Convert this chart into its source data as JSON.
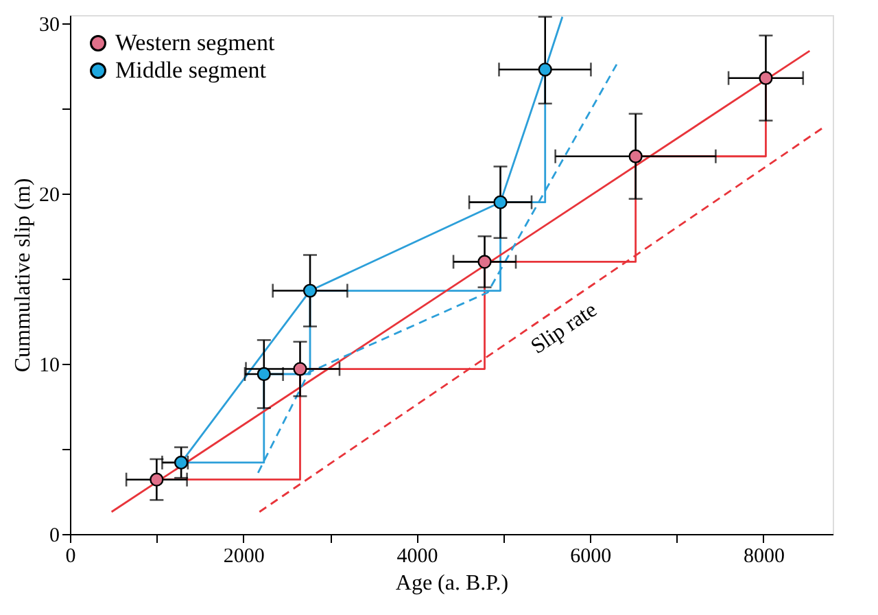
{
  "chart_data": {
    "type": "scatter",
    "xlabel": "Age (a. B.P.)",
    "ylabel": "Cummulative slip (m)",
    "xlim": [
      0,
      8800
    ],
    "ylim": [
      0,
      30.5
    ],
    "xticks": [
      0,
      {
        "value": 1000,
        "label": null
      },
      2000,
      {
        "value": 3000,
        "label": null
      },
      4000,
      {
        "value": 5000,
        "label": null
      },
      6000,
      {
        "value": 7000,
        "label": null
      },
      8000
    ],
    "yticks": [
      0,
      {
        "value": 5,
        "label": null
      },
      10,
      {
        "value": 15,
        "label": null
      },
      20,
      {
        "value": 25,
        "label": null
      },
      30
    ],
    "grid": false,
    "legend": "top left",
    "annotations": [
      "Slip rate"
    ],
    "series": [
      {
        "type": "step",
        "color": "#e8343a",
        "line_style": "solid",
        "marker": "none",
        "x": [
          1000,
          2655,
          4784,
          6526,
          8028
        ],
        "values": [
          3.2,
          9.7,
          16.0,
          22.2,
          26.8
        ]
      },
      {
        "type": "step",
        "color": "#2c9fd9",
        "line_style": "solid",
        "marker": "none",
        "x": [
          1283,
          2238,
          2770,
          4966,
          5482
        ],
        "values": [
          4.2,
          9.4,
          14.3,
          19.5,
          27.3
        ]
      },
      {
        "type": "line",
        "color": "#e8343a",
        "line_style": "solid",
        "marker": "none",
        "x": [
          480,
          8534
        ],
        "values": [
          1.3,
          28.4
        ]
      },
      {
        "type": "line",
        "color": "#e8343a",
        "line_style": "dashed",
        "marker": "none",
        "x": [
          2186,
          8722
        ],
        "values": [
          1.3,
          24.0
        ]
      },
      {
        "type": "line",
        "color": "#2c9fd9",
        "line_style": "solid",
        "marker": "none",
        "x": [
          1283,
          2770,
          4966,
          5482,
          5681
        ],
        "values": [
          4.2,
          14.3,
          19.5,
          27.3,
          30.4
        ]
      },
      {
        "type": "line",
        "color": "#2c9fd9",
        "line_style": "dashed",
        "marker": "none",
        "x": [
          2170,
          2755,
          4820,
          6307
        ],
        "values": [
          3.6,
          9.5,
          14.2,
          27.6
        ]
      },
      {
        "name": "Western segment",
        "color": "#e0708a",
        "marker": "circle",
        "x": [
          1000,
          2655,
          4784,
          6526,
          8028
        ],
        "values": [
          3.2,
          9.7,
          16.0,
          22.2,
          26.8
        ],
        "errors": [
          1.2,
          1.6,
          1.5,
          2.5,
          2.5
        ],
        "xerrors": [
          350,
          [
            2030,
            3110
          ],
          360,
          [
            5600,
            7450
          ],
          430
        ]
      },
      {
        "name": "Middle segment",
        "color": "#1fa8e0",
        "marker": "circle",
        "x": [
          1283,
          2238,
          2770,
          4966,
          5482
        ],
        "values": [
          4.2,
          9.4,
          14.3,
          19.5,
          27.3
        ],
        "errors": [
          0.9,
          2.0,
          2.1,
          2.1,
          [
            25.3,
            30.4
          ]
        ],
        "xerrors": [
          [
            1064,
            1360
          ],
          220,
          430,
          360,
          [
            4950,
            6010
          ]
        ]
      }
    ]
  }
}
